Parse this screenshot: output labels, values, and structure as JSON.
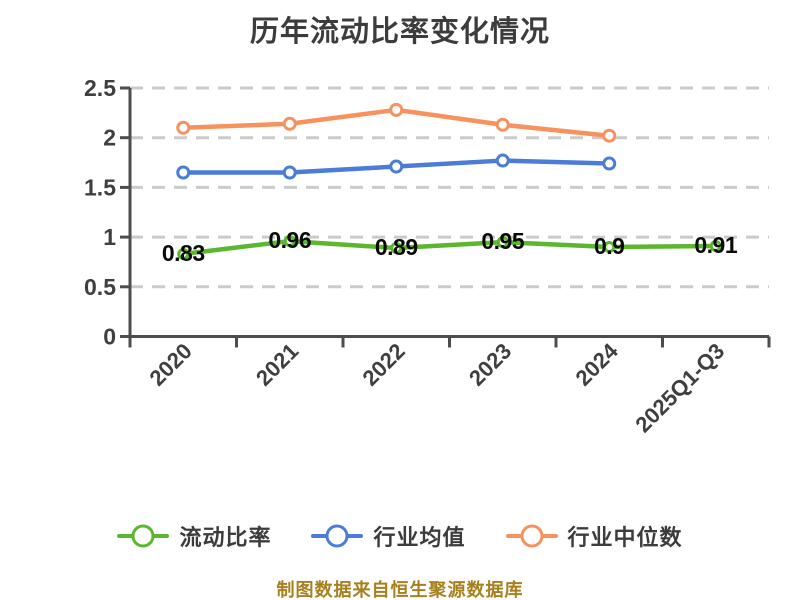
{
  "footer": {
    "text": "制图数据来自恒生聚源数据库"
  },
  "colors": {
    "title": "#3C3C3C",
    "axis": "#4D4D4D",
    "grid": "#CBCBCB",
    "tick_label": "#3F3F3F",
    "data_label": "#0A0A0A",
    "legend_text": "#3C3C3C",
    "footer": "#A8801E",
    "background": "#FFFFFF",
    "series_green": "#5AB72E",
    "series_blue": "#4B7CD8",
    "series_orange": "#F7925F"
  },
  "chart_data": {
    "type": "line",
    "title": "历年流动比率变化情况",
    "categories": [
      "2020",
      "2021",
      "2022",
      "2023",
      "2024",
      "2025Q1-Q3"
    ],
    "series": [
      {
        "name": "流动比率",
        "color": "#5AB72E",
        "values": [
          0.83,
          0.96,
          0.89,
          0.95,
          0.9,
          0.91
        ],
        "point_labels": [
          "0.83",
          "0.96",
          "0.89",
          "0.95",
          "0.9",
          "0.91"
        ]
      },
      {
        "name": "行业均值",
        "color": "#4B7CD8",
        "values": [
          1.65,
          1.65,
          1.71,
          1.77,
          1.74
        ],
        "point_labels": null
      },
      {
        "name": "行业中位数",
        "color": "#F7925F",
        "values": [
          2.1,
          2.14,
          2.28,
          2.13,
          2.02
        ],
        "point_labels": null
      }
    ],
    "xlabel": "",
    "ylabel": "",
    "ylim": [
      0,
      2.5
    ],
    "yticks": [
      "0",
      "0.5",
      "1",
      "1.5",
      "2",
      "2.5"
    ],
    "grid": "horizontal-dashed",
    "legend_position": "bottom"
  }
}
